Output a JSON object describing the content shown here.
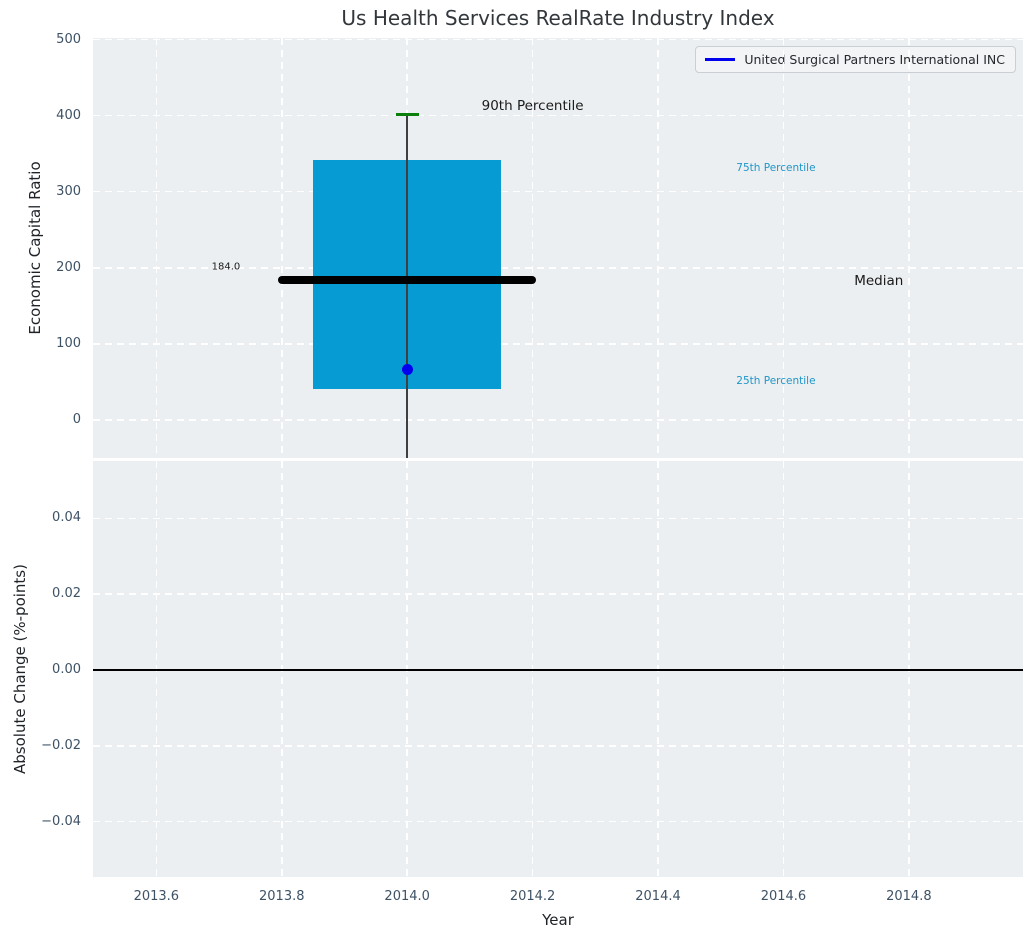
{
  "title": "Us Health Services RealRate Industry Index",
  "legend": {
    "label": "United Surgical Partners International INC",
    "line_color": "#0000ee"
  },
  "colors": {
    "axes_background": "#eceff1",
    "grid": "#ffffff",
    "box_fill": "#069cd3",
    "median_line": "#000000",
    "whisker": "#3f3f3f",
    "p90_cap": "#0b800b",
    "company_dot": "#0000ee",
    "percentile_label": "#1e96c8",
    "tick_label": "#3e5265",
    "zero_line": "#000000"
  },
  "chart_data": {
    "type": "boxplot",
    "title": "Us Health Services RealRate Industry Index",
    "xlabel": "Year",
    "xlim": [
      2013.499,
      2014.982
    ],
    "x_ticks": {
      "values": [
        2013.6,
        2013.8,
        2014.0,
        2014.2,
        2014.4,
        2014.6,
        2014.8
      ],
      "labels": [
        "2013.6",
        "2013.8",
        "2014.0",
        "2014.2",
        "2014.4",
        "2014.6",
        "2014.8"
      ]
    },
    "grid": true,
    "legend_position": "upper right",
    "panels": [
      {
        "name": "economic-capital-ratio",
        "ylabel": "Economic Capital Ratio",
        "ylim": [
          -50,
          502
        ],
        "yticks": {
          "values": [
            0,
            100,
            200,
            300,
            400,
            500
          ],
          "labels": [
            "0",
            "100",
            "200",
            "300",
            "400",
            "500"
          ]
        },
        "box": {
          "x": 2014.0,
          "q25": 41,
          "median": 184,
          "q75": 342,
          "p90": 402,
          "median_value_label": "184.0",
          "box_half_width": 0.15,
          "median_line_half_width": 0.206,
          "cap_half_width": 0.0185,
          "whisker_extends_below_axis": true
        },
        "company_point": {
          "name": "United Surgical Partners International INC",
          "x": 2014.0,
          "y": 66
        },
        "annotations": [
          {
            "text": "90th Percentile",
            "x": 2014.2,
            "y": 413,
            "color": "#1a1a1a",
            "size": 13.5
          },
          {
            "text": "75th Percentile",
            "x": 2014.588,
            "y": 331,
            "color": "#1e96c8",
            "size": 10.5
          },
          {
            "text": "Median",
            "x": 2014.752,
            "y": 183,
            "color": "#1a1a1a",
            "size": 13.5
          },
          {
            "text": "25th Percentile",
            "x": 2014.588,
            "y": 51,
            "color": "#1e96c8",
            "size": 10.5
          },
          {
            "text": "184.0",
            "x": 2013.711,
            "y": 201,
            "color": "#1a1a1a",
            "size": 10
          }
        ]
      },
      {
        "name": "absolute-change",
        "ylabel": "Absolute Change (%-points)",
        "ylim": [
          -0.0546,
          0.0551
        ],
        "yticks": {
          "values": [
            0.04,
            0.02,
            0.0,
            -0.02,
            -0.04
          ],
          "labels": [
            "0.04",
            "0.02",
            "0.00",
            "−0.02",
            "−0.04"
          ]
        },
        "zero_line": 0.0
      }
    ]
  }
}
